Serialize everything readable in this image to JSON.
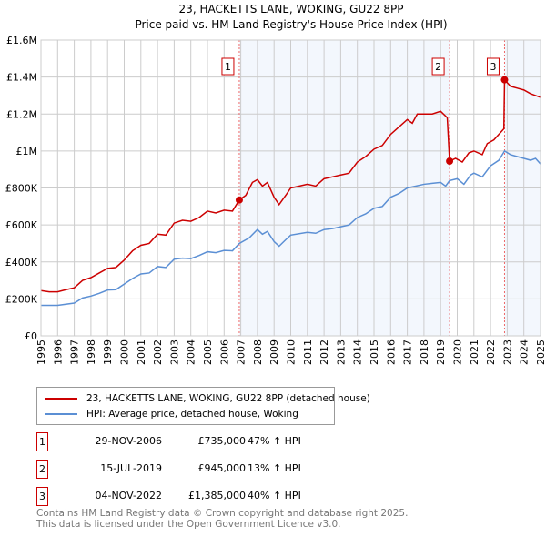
{
  "chart_data": {
    "type": "line",
    "title": "23, HACKETTS LANE, WOKING, GU22 8PP",
    "subtitle": "Price paid vs. HM Land Registry's House Price Index (HPI)",
    "xlim": [
      1995,
      2025
    ],
    "ylim": [
      0,
      1600000
    ],
    "grid": true,
    "y_ticks": [
      {
        "v": 0,
        "label": "£0"
      },
      {
        "v": 200000,
        "label": "£200K"
      },
      {
        "v": 400000,
        "label": "£400K"
      },
      {
        "v": 600000,
        "label": "£600K"
      },
      {
        "v": 800000,
        "label": "£800K"
      },
      {
        "v": 1000000,
        "label": "£1M"
      },
      {
        "v": 1200000,
        "label": "£1.2M"
      },
      {
        "v": 1400000,
        "label": "£1.4M"
      },
      {
        "v": 1600000,
        "label": "£1.6M"
      }
    ],
    "x_ticks": [
      "1995",
      "1996",
      "1997",
      "1998",
      "1999",
      "2000",
      "2001",
      "2002",
      "2003",
      "2004",
      "2005",
      "2006",
      "2007",
      "2008",
      "2009",
      "2010",
      "2011",
      "2012",
      "2013",
      "2014",
      "2015",
      "2016",
      "2017",
      "2018",
      "2019",
      "2020",
      "2021",
      "2022",
      "2023",
      "2024",
      "2025"
    ],
    "series": [
      {
        "name": "23, HACKETTS LANE, WOKING, GU22 8PP (detached house)",
        "color": "#cc0000",
        "points": [
          [
            1995,
            245000
          ],
          [
            1995.5,
            238000
          ],
          [
            1996,
            238000
          ],
          [
            1996.5,
            250000
          ],
          [
            1997,
            260000
          ],
          [
            1997.5,
            300000
          ],
          [
            1998,
            315000
          ],
          [
            1998.5,
            340000
          ],
          [
            1999,
            365000
          ],
          [
            1999.5,
            370000
          ],
          [
            2000,
            410000
          ],
          [
            2000.5,
            460000
          ],
          [
            2001,
            490000
          ],
          [
            2001.5,
            500000
          ],
          [
            2002,
            550000
          ],
          [
            2002.5,
            545000
          ],
          [
            2003,
            610000
          ],
          [
            2003.5,
            625000
          ],
          [
            2004,
            620000
          ],
          [
            2004.5,
            640000
          ],
          [
            2005,
            675000
          ],
          [
            2005.5,
            665000
          ],
          [
            2006,
            680000
          ],
          [
            2006.5,
            675000
          ],
          [
            2006.91,
            735000
          ],
          [
            2007.3,
            760000
          ],
          [
            2007.7,
            830000
          ],
          [
            2008,
            845000
          ],
          [
            2008.3,
            810000
          ],
          [
            2008.6,
            830000
          ],
          [
            2009,
            750000
          ],
          [
            2009.3,
            710000
          ],
          [
            2009.7,
            760000
          ],
          [
            2010,
            800000
          ],
          [
            2010.5,
            810000
          ],
          [
            2011,
            820000
          ],
          [
            2011.5,
            810000
          ],
          [
            2012,
            850000
          ],
          [
            2012.5,
            860000
          ],
          [
            2013,
            870000
          ],
          [
            2013.5,
            880000
          ],
          [
            2014,
            940000
          ],
          [
            2014.5,
            970000
          ],
          [
            2015,
            1010000
          ],
          [
            2015.5,
            1030000
          ],
          [
            2016,
            1090000
          ],
          [
            2016.5,
            1130000
          ],
          [
            2017,
            1170000
          ],
          [
            2017.3,
            1150000
          ],
          [
            2017.6,
            1200000
          ],
          [
            2018,
            1200000
          ],
          [
            2018.5,
            1200000
          ],
          [
            2019,
            1215000
          ],
          [
            2019.4,
            1180000
          ],
          [
            2019.54,
            945000
          ],
          [
            2019.9,
            960000
          ],
          [
            2020.3,
            940000
          ],
          [
            2020.7,
            990000
          ],
          [
            2021,
            1000000
          ],
          [
            2021.5,
            980000
          ],
          [
            2021.8,
            1040000
          ],
          [
            2022.2,
            1060000
          ],
          [
            2022.8,
            1120000
          ],
          [
            2022.84,
            1385000
          ],
          [
            2023.2,
            1350000
          ],
          [
            2023.6,
            1340000
          ],
          [
            2024,
            1330000
          ],
          [
            2024.4,
            1310000
          ],
          [
            2024.7,
            1300000
          ],
          [
            2025,
            1290000
          ]
        ]
      },
      {
        "name": "HPI: Average price, detached house, Woking",
        "color": "#5b8fd4",
        "points": [
          [
            1995,
            165000
          ],
          [
            1996,
            165000
          ],
          [
            1997,
            177000
          ],
          [
            1997.5,
            205000
          ],
          [
            1998,
            215000
          ],
          [
            1998.5,
            230000
          ],
          [
            1999,
            248000
          ],
          [
            1999.5,
            250000
          ],
          [
            2000,
            280000
          ],
          [
            2000.5,
            310000
          ],
          [
            2001,
            335000
          ],
          [
            2001.5,
            340000
          ],
          [
            2002,
            375000
          ],
          [
            2002.5,
            370000
          ],
          [
            2003,
            415000
          ],
          [
            2003.5,
            420000
          ],
          [
            2004,
            418000
          ],
          [
            2004.5,
            435000
          ],
          [
            2005,
            455000
          ],
          [
            2005.5,
            450000
          ],
          [
            2006,
            462000
          ],
          [
            2006.5,
            460000
          ],
          [
            2006.91,
            500000
          ],
          [
            2007.5,
            530000
          ],
          [
            2008,
            575000
          ],
          [
            2008.3,
            550000
          ],
          [
            2008.6,
            565000
          ],
          [
            2009,
            510000
          ],
          [
            2009.3,
            485000
          ],
          [
            2009.7,
            520000
          ],
          [
            2010,
            545000
          ],
          [
            2011,
            560000
          ],
          [
            2011.5,
            555000
          ],
          [
            2012,
            575000
          ],
          [
            2012.5,
            580000
          ],
          [
            2013,
            590000
          ],
          [
            2013.5,
            600000
          ],
          [
            2014,
            640000
          ],
          [
            2014.5,
            660000
          ],
          [
            2015,
            690000
          ],
          [
            2015.5,
            700000
          ],
          [
            2016,
            750000
          ],
          [
            2016.5,
            770000
          ],
          [
            2017,
            800000
          ],
          [
            2017.5,
            810000
          ],
          [
            2018,
            820000
          ],
          [
            2018.5,
            825000
          ],
          [
            2019,
            830000
          ],
          [
            2019.3,
            810000
          ],
          [
            2019.54,
            840000
          ],
          [
            2020,
            850000
          ],
          [
            2020.4,
            820000
          ],
          [
            2020.8,
            870000
          ],
          [
            2021,
            880000
          ],
          [
            2021.5,
            860000
          ],
          [
            2022,
            920000
          ],
          [
            2022.5,
            950000
          ],
          [
            2022.84,
            1000000
          ],
          [
            2023.2,
            980000
          ],
          [
            2023.6,
            970000
          ],
          [
            2024,
            960000
          ],
          [
            2024.4,
            950000
          ],
          [
            2024.7,
            960000
          ],
          [
            2025,
            930000
          ]
        ]
      }
    ],
    "sales": [
      {
        "label": "1",
        "x": 2006.91,
        "y": 735000
      },
      {
        "label": "2",
        "x": 2019.54,
        "y": 945000
      },
      {
        "label": "3",
        "x": 2022.84,
        "y": 1385000
      }
    ]
  },
  "legend": {
    "red": "23, HACKETTS LANE, WOKING, GU22 8PP (detached house)",
    "blue": "HPI: Average price, detached house, Woking"
  },
  "table": [
    {
      "num": "1",
      "date": "29-NOV-2006",
      "price": "£735,000",
      "hpi": "47% ↑ HPI"
    },
    {
      "num": "2",
      "date": "15-JUL-2019",
      "price": "£945,000",
      "hpi": "13% ↑ HPI"
    },
    {
      "num": "3",
      "date": "04-NOV-2022",
      "price": "£1,385,000",
      "hpi": "40% ↑ HPI"
    }
  ],
  "footer": {
    "line1": "Contains HM Land Registry data © Crown copyright and database right 2025.",
    "line2": "This data is licensed under the Open Government Licence v3.0."
  }
}
